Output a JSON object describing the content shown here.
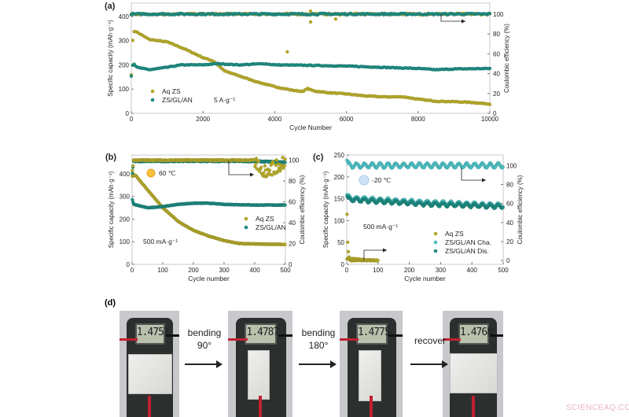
{
  "colors": {
    "aq_zs": "#b3a82a",
    "zs_gl_an": "#1e8a7f",
    "zs_gl_an_cha": "#4dbfc2",
    "zs_gl_an_dis": "#1e8a7f"
  },
  "chart_data": [
    {
      "panel": "(a)",
      "type": "scatter",
      "xlabel": "Cycle Number",
      "ylabel": "Specific capacity (mAh·g⁻¹)",
      "y2label": "Coulombic efficiency (%)",
      "xlim": [
        0,
        10000
      ],
      "ylim": [
        0,
        455
      ],
      "y2lim": [
        0,
        111
      ],
      "xticks": [
        0,
        2000,
        4000,
        6000,
        8000,
        10000
      ],
      "yticks": [
        0,
        100,
        200,
        300,
        400
      ],
      "y2ticks": [
        0,
        20,
        40,
        60,
        80,
        100
      ],
      "annotation": "5 A·g⁻¹",
      "legend_position": "lower-left",
      "series": [
        {
          "name": "Aq ZS",
          "color_key": "aq_zs",
          "axis": "left",
          "points": [
            [
              0,
              160
            ],
            [
              50,
              335
            ],
            [
              100,
              340
            ],
            [
              500,
              305
            ],
            [
              1000,
              295
            ],
            [
              1500,
              265
            ],
            [
              2000,
              230
            ],
            [
              2300,
              215
            ],
            [
              2600,
              175
            ],
            [
              3000,
              155
            ],
            [
              3500,
              130
            ],
            [
              4000,
              110
            ],
            [
              4500,
              95
            ],
            [
              4800,
              90
            ],
            [
              4900,
              103
            ],
            [
              5100,
              92
            ],
            [
              5500,
              85
            ],
            [
              6000,
              80
            ],
            [
              6500,
              72
            ],
            [
              7000,
              68
            ],
            [
              7600,
              68
            ],
            [
              8000,
              58
            ],
            [
              8500,
              50
            ],
            [
              9000,
              48
            ],
            [
              9500,
              45
            ],
            [
              10000,
              38
            ]
          ]
        },
        {
          "name": "ZS/GL/AN",
          "color_key": "zs_gl_an",
          "axis": "left",
          "points": [
            [
              0,
              155
            ],
            [
              50,
              210
            ],
            [
              150,
              190
            ],
            [
              500,
              180
            ],
            [
              1000,
              190
            ],
            [
              1400,
              200
            ],
            [
              2000,
              200
            ],
            [
              2400,
              205
            ],
            [
              3000,
              200
            ],
            [
              3700,
              205
            ],
            [
              4000,
              200
            ],
            [
              5000,
              198
            ],
            [
              6000,
              195
            ],
            [
              7000,
              190
            ],
            [
              8000,
              185
            ],
            [
              8500,
              180
            ],
            [
              9000,
              183
            ],
            [
              10000,
              185
            ]
          ]
        },
        {
          "name": "Aq ZS CE",
          "color_key": "aq_zs",
          "axis": "right",
          "points": [
            [
              0,
              100
            ],
            [
              10000,
              100
            ]
          ],
          "outliers": [
            [
              4350,
              62
            ],
            [
              5000,
              92
            ],
            [
              5000,
              103
            ],
            [
              5700,
              95
            ]
          ]
        },
        {
          "name": "ZS/GL/AN CE",
          "color_key": "zs_gl_an",
          "axis": "right",
          "points": [
            [
              0,
              100
            ],
            [
              10000,
              100
            ]
          ]
        }
      ]
    },
    {
      "panel": "(b)",
      "type": "scatter",
      "xlabel": "Cycle number",
      "ylabel": "Specific capacity (mAh·g⁻¹)",
      "y2label": "Coulombic efficiency (%)",
      "xlim": [
        0,
        500
      ],
      "ylim": [
        0,
        483
      ],
      "y2lim": [
        0,
        105
      ],
      "xticks": [
        0,
        100,
        200,
        300,
        400,
        500
      ],
      "yticks": [
        0,
        100,
        200,
        300,
        400
      ],
      "y2ticks": [
        0,
        20,
        40,
        60,
        80,
        100
      ],
      "annotation": "500 mA·g⁻¹",
      "temperature": "60 ℃",
      "legend_position": "center-right",
      "series": [
        {
          "name": "Aq ZS",
          "color_key": "aq_zs",
          "axis": "left",
          "points": [
            [
              1,
              390
            ],
            [
              10,
              395
            ],
            [
              50,
              330
            ],
            [
              100,
              250
            ],
            [
              150,
              190
            ],
            [
              200,
              150
            ],
            [
              250,
              125
            ],
            [
              300,
              105
            ],
            [
              350,
              92
            ],
            [
              400,
              90
            ],
            [
              500,
              88
            ]
          ]
        },
        {
          "name": "ZS/GL/AN",
          "color_key": "zs_gl_an",
          "axis": "left",
          "points": [
            [
              1,
              285
            ],
            [
              5,
              265
            ],
            [
              50,
              250
            ],
            [
              100,
              255
            ],
            [
              150,
              265
            ],
            [
              200,
              270
            ],
            [
              250,
              270
            ],
            [
              300,
              265
            ],
            [
              400,
              262
            ],
            [
              500,
              262
            ]
          ]
        },
        {
          "name": "ZS/GL/AN CE",
          "color_key": "zs_gl_an",
          "axis": "right",
          "points": [
            [
              1,
              88
            ],
            [
              5,
              99
            ],
            [
              400,
              99
            ],
            [
              500,
              98
            ]
          ]
        },
        {
          "name": "Aq ZS CE",
          "color_key": "aq_zs",
          "axis": "right",
          "points": [
            [
              1,
              90
            ],
            [
              5,
              100
            ],
            [
              400,
              100
            ],
            [
              430,
              90
            ],
            [
              460,
              92
            ],
            [
              500,
              99
            ]
          ]
        }
      ]
    },
    {
      "panel": "(c)",
      "type": "scatter",
      "xlabel": "Cycle number",
      "ylabel": "Specific capacity (mAh·g⁻¹)",
      "y2label": "Coulombic efficiency (%)",
      "xlim": [
        0,
        500
      ],
      "ylim": [
        0,
        250
      ],
      "y2lim": [
        -4,
        111
      ],
      "xticks": [
        0,
        100,
        200,
        300,
        400,
        500
      ],
      "yticks": [
        0,
        50,
        100,
        150,
        200,
        250
      ],
      "y2ticks": [
        0,
        20,
        40,
        60,
        80,
        100
      ],
      "annotation": "500 mA·g⁻¹",
      "temperature": "-20 ℃",
      "legend_position": "lower-right",
      "series": [
        {
          "name": "Aq ZS",
          "color_key": "aq_zs",
          "axis": "left",
          "points": [
            [
              1,
              115
            ],
            [
              3,
              50
            ],
            [
              6,
              20
            ],
            [
              10,
              9
            ],
            [
              100,
              9
            ]
          ]
        },
        {
          "name": "Aq ZS CE",
          "color_key": "aq_zs",
          "axis": "right",
          "points": [
            [
              1,
              2
            ],
            [
              100,
              0
            ]
          ]
        },
        {
          "name": "ZS/GL/AN Cha.",
          "color_key": "zs_gl_an_cha",
          "axis": "left",
          "points": [
            [
              1,
              160
            ],
            [
              10,
              152
            ],
            [
              250,
              142
            ],
            [
              500,
              135
            ]
          ]
        },
        {
          "name": "ZS/GL/AN Dis.",
          "color_key": "zs_gl_an_dis",
          "axis": "left",
          "points": [
            [
              1,
              155
            ],
            [
              10,
              148
            ],
            [
              250,
              138
            ],
            [
              500,
              132
            ]
          ]
        },
        {
          "name": "ZS/GL/AN CE",
          "color_key": "zs_gl_an_cha",
          "axis": "right",
          "points": [
            [
              1,
              105
            ],
            [
              10,
              100
            ],
            [
              500,
              100
            ]
          ]
        }
      ]
    }
  ],
  "panel_d": {
    "label": "(d)",
    "readings": [
      "1.4751",
      "1.4787",
      "1.4775",
      "1.4768"
    ],
    "steps": [
      {
        "line1": "bending",
        "line2": "90°"
      },
      {
        "line1": "bending",
        "line2": "180°"
      },
      {
        "line1": "recover",
        "line2": ""
      }
    ]
  },
  "watermark": "SCIENCEAQ.COM"
}
